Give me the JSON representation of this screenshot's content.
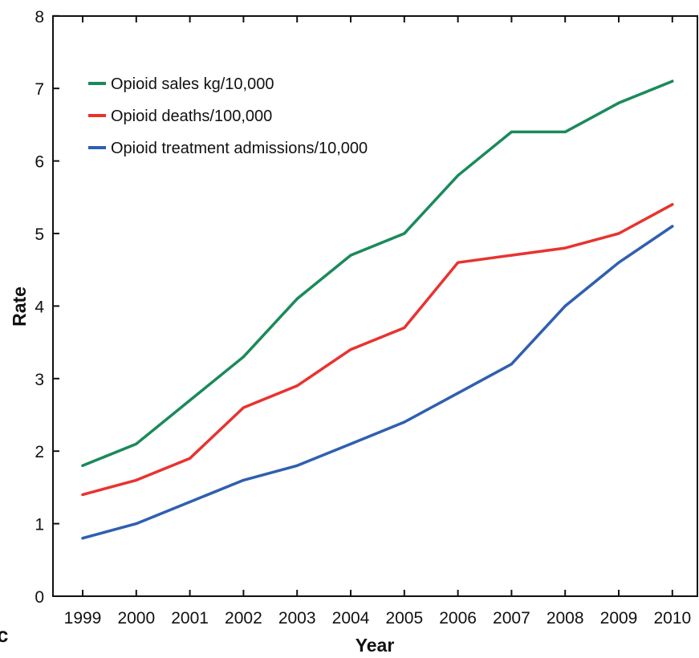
{
  "chart_data": {
    "type": "line",
    "xlabel": "Year",
    "ylabel": "Rate",
    "ylim": [
      0,
      8
    ],
    "yticks": [
      "0",
      "1",
      "2",
      "3",
      "4",
      "5",
      "6",
      "7",
      "8"
    ],
    "x": [
      "1999",
      "2000",
      "2001",
      "2002",
      "2003",
      "2004",
      "2005",
      "2006",
      "2007",
      "2008",
      "2009",
      "2010"
    ],
    "legend_position": "top-left",
    "grid": false,
    "series": [
      {
        "name": "Opioid sales kg/10,000",
        "color": "#1a8a5a",
        "values": [
          1.8,
          2.1,
          2.7,
          3.3,
          4.1,
          4.7,
          5.0,
          5.8,
          6.4,
          6.4,
          6.8,
          7.1
        ]
      },
      {
        "name": "Opioid deaths/100,000",
        "color": "#e8332f",
        "values": [
          1.4,
          1.6,
          1.9,
          2.6,
          2.9,
          3.4,
          3.7,
          4.6,
          4.7,
          4.8,
          5.0,
          5.4
        ]
      },
      {
        "name": "Opioid treatment admissions/10,000",
        "color": "#2f5fb0",
        "values": [
          0.8,
          1.0,
          1.3,
          1.6,
          1.8,
          2.1,
          2.4,
          2.8,
          3.2,
          4.0,
          4.6,
          5.1
        ]
      }
    ]
  },
  "corner_fragment": "c"
}
